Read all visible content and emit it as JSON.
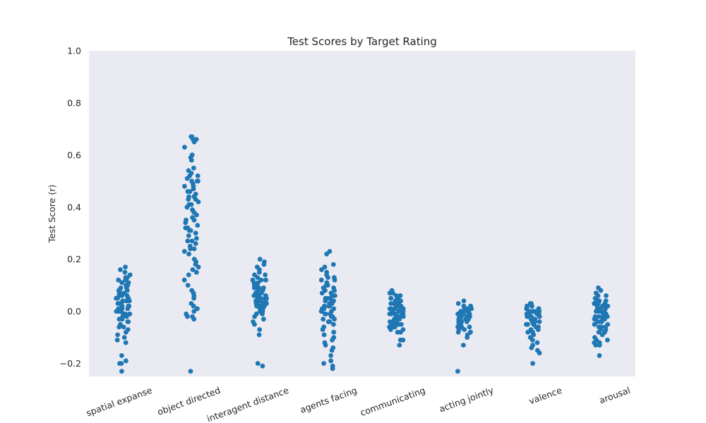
{
  "chart_data": {
    "type": "strip",
    "title": "Test Scores by Target Rating",
    "xlabel": "",
    "ylabel": "Test Score (r)",
    "ylim": [
      -0.25,
      1.0
    ],
    "yticks": [
      -0.2,
      0.0,
      0.2,
      0.4,
      0.6,
      0.8,
      1.0
    ],
    "ytick_labels": [
      "−0.2",
      "0.0",
      "0.2",
      "0.4",
      "0.6",
      "0.8",
      "1.0"
    ],
    "categories": [
      "spatial expanse",
      "object directed",
      "interagent distance",
      "agents facing",
      "communicating",
      "acting jointly",
      "valence",
      "arousal"
    ],
    "point_color": "#1f77b4",
    "background_color": "#eaeaf2",
    "series": [
      {
        "name": "spatial expanse",
        "values": [
          0.17,
          0.16,
          0.15,
          0.14,
          0.13,
          0.12,
          0.12,
          0.11,
          0.1,
          0.1,
          0.09,
          0.09,
          0.08,
          0.08,
          0.07,
          0.07,
          0.06,
          0.06,
          0.05,
          0.05,
          0.05,
          0.04,
          0.04,
          0.03,
          0.03,
          0.03,
          0.02,
          0.02,
          0.02,
          0.01,
          0.01,
          0.01,
          0.0,
          0.0,
          0.0,
          -0.01,
          -0.01,
          -0.02,
          -0.02,
          -0.03,
          -0.03,
          -0.04,
          -0.04,
          -0.05,
          -0.06,
          -0.07,
          -0.08,
          -0.09,
          -0.1,
          -0.11,
          -0.12,
          -0.17,
          -0.19,
          -0.2,
          -0.2,
          -0.23,
          0.06,
          0.04,
          0.02,
          0.0,
          0.08,
          0.03,
          -0.01,
          0.05,
          0.01,
          0.07,
          0.11,
          -0.06,
          0.13
        ]
      },
      {
        "name": "object directed",
        "values": [
          0.67,
          0.67,
          0.66,
          0.66,
          0.65,
          0.63,
          0.6,
          0.59,
          0.58,
          0.55,
          0.54,
          0.53,
          0.52,
          0.51,
          0.5,
          0.5,
          0.49,
          0.48,
          0.48,
          0.47,
          0.46,
          0.45,
          0.44,
          0.43,
          0.43,
          0.42,
          0.41,
          0.4,
          0.39,
          0.38,
          0.37,
          0.36,
          0.35,
          0.34,
          0.33,
          0.32,
          0.32,
          0.31,
          0.3,
          0.29,
          0.28,
          0.27,
          0.26,
          0.25,
          0.24,
          0.23,
          0.22,
          0.2,
          0.19,
          0.18,
          0.17,
          0.16,
          0.15,
          0.14,
          0.12,
          0.1,
          0.08,
          0.07,
          0.06,
          0.05,
          0.03,
          0.02,
          0.01,
          0.0,
          -0.01,
          -0.02,
          -0.02,
          -0.03,
          -0.23,
          0.44,
          0.38,
          0.31,
          0.52,
          0.46,
          0.41,
          0.35,
          0.27,
          0.5,
          0.24
        ]
      },
      {
        "name": "interagent distance",
        "values": [
          0.2,
          0.19,
          0.18,
          0.17,
          0.16,
          0.15,
          0.14,
          0.14,
          0.13,
          0.12,
          0.12,
          0.11,
          0.11,
          0.1,
          0.1,
          0.09,
          0.09,
          0.08,
          0.08,
          0.08,
          0.07,
          0.07,
          0.06,
          0.06,
          0.06,
          0.05,
          0.05,
          0.05,
          0.04,
          0.04,
          0.04,
          0.03,
          0.03,
          0.03,
          0.02,
          0.02,
          0.02,
          0.01,
          0.01,
          0.0,
          0.0,
          -0.01,
          -0.01,
          -0.02,
          -0.03,
          -0.04,
          -0.05,
          -0.07,
          -0.09,
          -0.2,
          -0.21,
          0.07,
          0.05,
          0.03,
          0.09,
          0.06,
          0.02,
          0.1,
          0.04,
          0.12
        ]
      },
      {
        "name": "agents facing",
        "values": [
          0.23,
          0.22,
          0.18,
          0.17,
          0.16,
          0.15,
          0.14,
          0.13,
          0.12,
          0.12,
          0.11,
          0.1,
          0.09,
          0.09,
          0.08,
          0.08,
          0.07,
          0.06,
          0.06,
          0.05,
          0.05,
          0.04,
          0.04,
          0.03,
          0.03,
          0.02,
          0.02,
          0.01,
          0.01,
          0.0,
          0.0,
          -0.01,
          -0.01,
          -0.02,
          -0.02,
          -0.03,
          -0.04,
          -0.05,
          -0.06,
          -0.07,
          -0.09,
          -0.1,
          -0.11,
          -0.12,
          -0.13,
          -0.14,
          -0.15,
          -0.17,
          -0.19,
          -0.2,
          -0.21,
          -0.22,
          0.04,
          0.01,
          -0.03,
          0.07,
          0.02,
          -0.01,
          0.1,
          0.13,
          0.0,
          0.05,
          -0.04,
          -0.08
        ]
      },
      {
        "name": "communicating",
        "values": [
          0.08,
          0.07,
          0.07,
          0.06,
          0.06,
          0.05,
          0.05,
          0.05,
          0.04,
          0.04,
          0.04,
          0.03,
          0.03,
          0.03,
          0.02,
          0.02,
          0.02,
          0.01,
          0.01,
          0.01,
          0.01,
          0.0,
          0.0,
          0.0,
          0.0,
          -0.01,
          -0.01,
          -0.01,
          -0.01,
          -0.02,
          -0.02,
          -0.02,
          -0.02,
          -0.03,
          -0.03,
          -0.03,
          -0.04,
          -0.04,
          -0.04,
          -0.05,
          -0.05,
          -0.05,
          -0.06,
          -0.06,
          -0.07,
          -0.07,
          -0.08,
          -0.08,
          -0.11,
          -0.11,
          -0.13,
          0.02,
          0.0,
          -0.02,
          0.03,
          -0.01,
          0.01,
          -0.03,
          0.04,
          -0.04,
          0.0,
          0.02,
          -0.01,
          -0.05,
          0.05,
          0.01,
          -0.02,
          -0.06
        ]
      },
      {
        "name": "acting jointly",
        "values": [
          0.04,
          0.03,
          0.02,
          0.02,
          0.01,
          0.01,
          0.01,
          0.0,
          0.0,
          0.0,
          0.0,
          -0.01,
          -0.01,
          -0.01,
          -0.01,
          -0.02,
          -0.02,
          -0.02,
          -0.02,
          -0.03,
          -0.03,
          -0.03,
          -0.03,
          -0.04,
          -0.04,
          -0.04,
          -0.05,
          -0.05,
          -0.05,
          -0.06,
          -0.06,
          -0.07,
          -0.07,
          -0.08,
          -0.08,
          -0.09,
          -0.1,
          -0.13,
          -0.23,
          -0.02,
          -0.03,
          0.0,
          -0.01,
          -0.04,
          -0.02,
          0.01,
          -0.05,
          -0.03,
          -0.06,
          -0.01
        ]
      },
      {
        "name": "valence",
        "values": [
          0.03,
          0.03,
          0.02,
          0.02,
          0.02,
          0.01,
          0.01,
          0.01,
          0.0,
          0.0,
          0.0,
          0.0,
          -0.01,
          -0.01,
          -0.01,
          -0.01,
          -0.02,
          -0.02,
          -0.02,
          -0.02,
          -0.03,
          -0.03,
          -0.03,
          -0.04,
          -0.04,
          -0.04,
          -0.05,
          -0.05,
          -0.05,
          -0.06,
          -0.06,
          -0.07,
          -0.07,
          -0.08,
          -0.08,
          -0.09,
          -0.1,
          -0.11,
          -0.12,
          -0.13,
          -0.14,
          -0.15,
          -0.16,
          -0.2,
          -0.02,
          0.0,
          -0.01,
          -0.03,
          0.01,
          -0.04,
          -0.02,
          -0.05,
          0.0,
          -0.06
        ]
      },
      {
        "name": "arousal",
        "values": [
          0.09,
          0.08,
          0.07,
          0.06,
          0.06,
          0.05,
          0.05,
          0.04,
          0.04,
          0.03,
          0.03,
          0.03,
          0.02,
          0.02,
          0.02,
          0.01,
          0.01,
          0.01,
          0.0,
          0.0,
          0.0,
          0.0,
          -0.01,
          -0.01,
          -0.01,
          -0.02,
          -0.02,
          -0.02,
          -0.03,
          -0.03,
          -0.03,
          -0.04,
          -0.04,
          -0.05,
          -0.05,
          -0.06,
          -0.06,
          -0.07,
          -0.07,
          -0.08,
          -0.09,
          -0.1,
          -0.11,
          -0.11,
          -0.12,
          -0.12,
          -0.13,
          -0.13,
          -0.17,
          0.0,
          -0.02,
          0.01,
          -0.04,
          0.03,
          -0.01,
          -0.03,
          0.02,
          -0.05,
          0.04,
          -0.06,
          -0.02,
          0.0,
          -0.08
        ]
      }
    ]
  }
}
